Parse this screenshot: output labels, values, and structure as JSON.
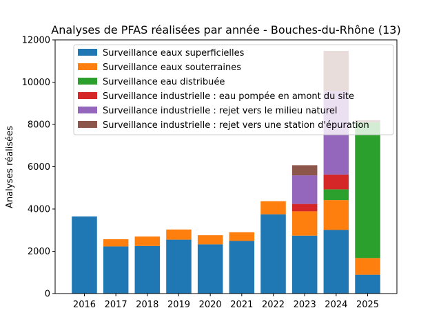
{
  "chart_data": {
    "type": "bar",
    "stacked": true,
    "title": "Analyses de PFAS réalisées par année - Bouches-du-Rhône (13)",
    "xlabel": "",
    "ylabel": "Analyses réalisées",
    "ylim": [
      0,
      12000
    ],
    "yticks": [
      0,
      2000,
      4000,
      6000,
      8000,
      10000,
      12000
    ],
    "grid": false,
    "legend_position": "top-left",
    "categories": [
      "2016",
      "2017",
      "2018",
      "2019",
      "2020",
      "2021",
      "2022",
      "2023",
      "2024",
      "2025"
    ],
    "series": [
      {
        "name": "Surveillance eaux superficielles",
        "color": "#1f77b4",
        "values": [
          3650,
          2230,
          2250,
          2550,
          2330,
          2490,
          3750,
          2740,
          3010,
          890
        ]
      },
      {
        "name": "Surveillance eaux souterraines",
        "color": "#ff7f0e",
        "values": [
          0,
          340,
          450,
          480,
          430,
          410,
          620,
          1150,
          1410,
          790
        ]
      },
      {
        "name": "Surveillance eau distribuée",
        "color": "#2ca02c",
        "values": [
          0,
          0,
          0,
          0,
          0,
          0,
          0,
          0,
          510,
          6420
        ]
      },
      {
        "name": "Surveillance industrielle : eau pompée en amont du site",
        "color": "#d62728",
        "values": [
          0,
          0,
          0,
          0,
          0,
          0,
          0,
          350,
          700,
          0
        ]
      },
      {
        "name": "Surveillance industrielle : rejet vers le milieu naturel",
        "color": "#9467bd",
        "values": [
          0,
          0,
          0,
          0,
          0,
          0,
          0,
          1350,
          3950,
          0
        ]
      },
      {
        "name": "Surveillance industrielle : rejet vers une station d'épuration",
        "color": "#8c564b",
        "values": [
          0,
          0,
          0,
          0,
          0,
          0,
          0,
          480,
          1900,
          100
        ]
      }
    ]
  }
}
